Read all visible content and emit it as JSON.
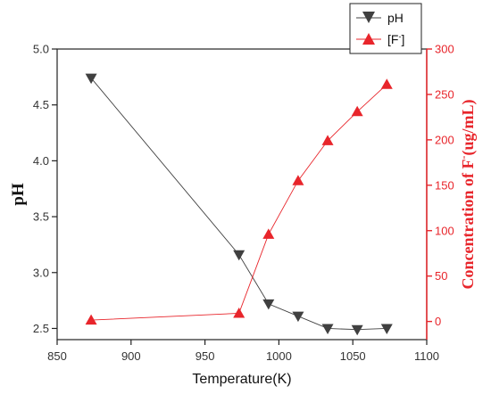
{
  "chart_data": {
    "type": "line",
    "xlabel": "Temperature(K)",
    "ylabel": "pH",
    "y2label_main": "Concentration of F",
    "y2label_sup": "-",
    "y2label_tail": "(ug/mL)",
    "xlim": [
      850,
      1100
    ],
    "ylim": [
      2.4,
      5.0
    ],
    "y2lim": [
      -20,
      300
    ],
    "xticks": [
      "850",
      "900",
      "950",
      "1000",
      "1050",
      "1100"
    ],
    "yticks": [
      "2.5",
      "3.0",
      "3.5",
      "4.0",
      "4.5",
      "5.0"
    ],
    "y2ticks": [
      "0",
      "50",
      "100",
      "150",
      "200",
      "250",
      "300"
    ],
    "legend_position": "top-right",
    "series": [
      {
        "name": "pH",
        "axis": "left",
        "color": "#404040",
        "marker": "triangle-down",
        "x": [
          873,
          973,
          993,
          1013,
          1033,
          1053,
          1073
        ],
        "y": [
          4.74,
          3.16,
          2.72,
          2.61,
          2.5,
          2.49,
          2.5
        ]
      },
      {
        "name_main": "[F",
        "name_sup": "-",
        "name_tail": "]",
        "axis": "right",
        "color": "#e8252b",
        "marker": "triangle-up",
        "x": [
          873,
          973,
          993,
          1013,
          1033,
          1053,
          1073
        ],
        "y": [
          1.5,
          9,
          96,
          155,
          199,
          231,
          261
        ]
      }
    ]
  }
}
